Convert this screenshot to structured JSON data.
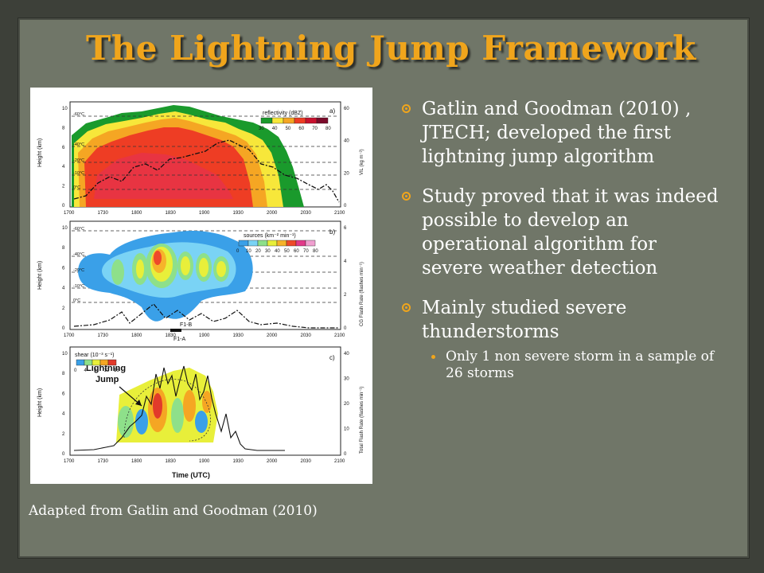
{
  "title": "The Lightning Jump Framework",
  "caption": "Adapted from Gatlin and Goodman (2010)",
  "bullets": [
    {
      "text": "Gatlin and Goodman (2010) , JTECH; developed the first lightning jump algorithm"
    },
    {
      "text": "Study proved that it was indeed possible to develop an operational algorithm for severe weather detection"
    },
    {
      "text": "Mainly studied severe thunderstorms",
      "sub": "Only 1 non severe storm in a sample of 26 storms"
    }
  ],
  "figure": {
    "time_ticks": [
      "1700",
      "1730",
      "1800",
      "1830",
      "1900",
      "1930",
      "2000",
      "2030",
      "2100"
    ],
    "time_label": "Time (UTC)",
    "height_label": "Height (km)",
    "height_ticks": [
      "0",
      "2",
      "4",
      "6",
      "8",
      "10"
    ],
    "panel_a": {
      "panel_letter": "a)",
      "legend_title": "reflectivity (dBZ)",
      "legend_ticks": [
        "30",
        "40",
        "50",
        "60",
        "70",
        "80"
      ],
      "legend_colors": [
        "#1a9a2c",
        "#f7e73a",
        "#f5a623",
        "#ee3d24",
        "#c8102e",
        "#7a0a2a"
      ],
      "right_label": "VIL (kg m⁻²)",
      "right_ticks": [
        "0",
        "20",
        "40",
        "60"
      ],
      "isotherms": [
        "-60°C",
        "-40°C",
        "-20°C",
        "-10°C",
        "0°C"
      ]
    },
    "panel_b": {
      "panel_letter": "b)",
      "legend_title": "sources (km⁻² min⁻¹)",
      "legend_ticks": [
        "0",
        "10",
        "20",
        "30",
        "40",
        "50",
        "60",
        "70",
        "80"
      ],
      "legend_colors": [
        "#3aa0e8",
        "#7ad3f5",
        "#8ee08a",
        "#e8ef3a",
        "#f6b32a",
        "#ee4a2a",
        "#e23a8a",
        "#f0a0d0"
      ],
      "right_label": "CG Flash Rate (flashes min⁻¹)",
      "right_ticks": [
        "0",
        "2",
        "4",
        "6"
      ],
      "isotherms": [
        "-60°C",
        "-40°C",
        "-20°C",
        "-10°C",
        "0°C"
      ],
      "markers": [
        "F1-B",
        "F1-A"
      ]
    },
    "panel_c": {
      "panel_letter": "c)",
      "legend_title": "shear (10⁻³ s⁻¹)",
      "legend_ticks": [
        "0",
        "4",
        "8",
        "12",
        "16"
      ],
      "legend_colors": [
        "#3aa0e8",
        "#8ee08a",
        "#e8ef3a",
        "#f5a623",
        "#e23a2a"
      ],
      "right_label": "Total Flash Rate (flashes min⁻¹)",
      "right_ticks": [
        "0",
        "10",
        "20",
        "30",
        "40"
      ],
      "annotation_line1": "Lightning",
      "annotation_line2": "Jump"
    }
  }
}
